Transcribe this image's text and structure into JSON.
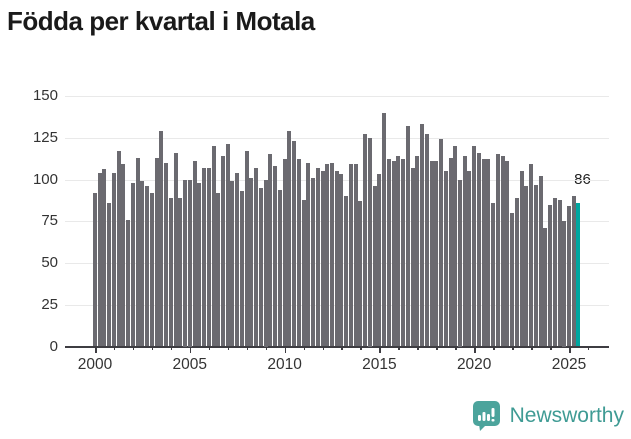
{
  "title": "Födda per kvartal i Motala",
  "branding": {
    "name": "Newsworthy"
  },
  "colors": {
    "bar": "#6b6a70",
    "highlight": "#00a6a0",
    "title": "#1a1a1a",
    "tick_label": "#333333",
    "gridline": "#e9e9e9",
    "axis": "#3e3d42",
    "brand_text": "#3f9b94",
    "brand_icon_bg": "#4ca49c"
  },
  "chart_data": {
    "type": "bar",
    "title": "Födda per kvartal i Motala",
    "frequency": "quarterly",
    "x_start": "2000-Q1",
    "x_end": "2025-Q3",
    "ylim": [
      0,
      150
    ],
    "y_ticks": [
      0,
      25,
      50,
      75,
      100,
      125,
      150
    ],
    "x_tick_years": [
      2000,
      2005,
      2010,
      2015,
      2020,
      2025
    ],
    "grid": "horizontal",
    "legend": "none",
    "highlight_last": {
      "value": 86,
      "label": "86"
    },
    "values": [
      92,
      104,
      106,
      86,
      104,
      117,
      109,
      76,
      98,
      113,
      99,
      96,
      92,
      113,
      129,
      110,
      89,
      116,
      89,
      100,
      100,
      111,
      98,
      107,
      107,
      120,
      92,
      114,
      121,
      99,
      104,
      93,
      117,
      101,
      107,
      95,
      100,
      115,
      108,
      94,
      112,
      129,
      123,
      112,
      88,
      110,
      101,
      107,
      105,
      109,
      110,
      105,
      103,
      90,
      109,
      109,
      87,
      127,
      125,
      96,
      103,
      140,
      112,
      111,
      114,
      112,
      132,
      107,
      114,
      133,
      127,
      111,
      111,
      124,
      105,
      113,
      120,
      100,
      114,
      105,
      120,
      116,
      112,
      112,
      86,
      115,
      114,
      111,
      80,
      89,
      105,
      96,
      109,
      97,
      102,
      71,
      85,
      89,
      88,
      75,
      84,
      90,
      86
    ]
  }
}
